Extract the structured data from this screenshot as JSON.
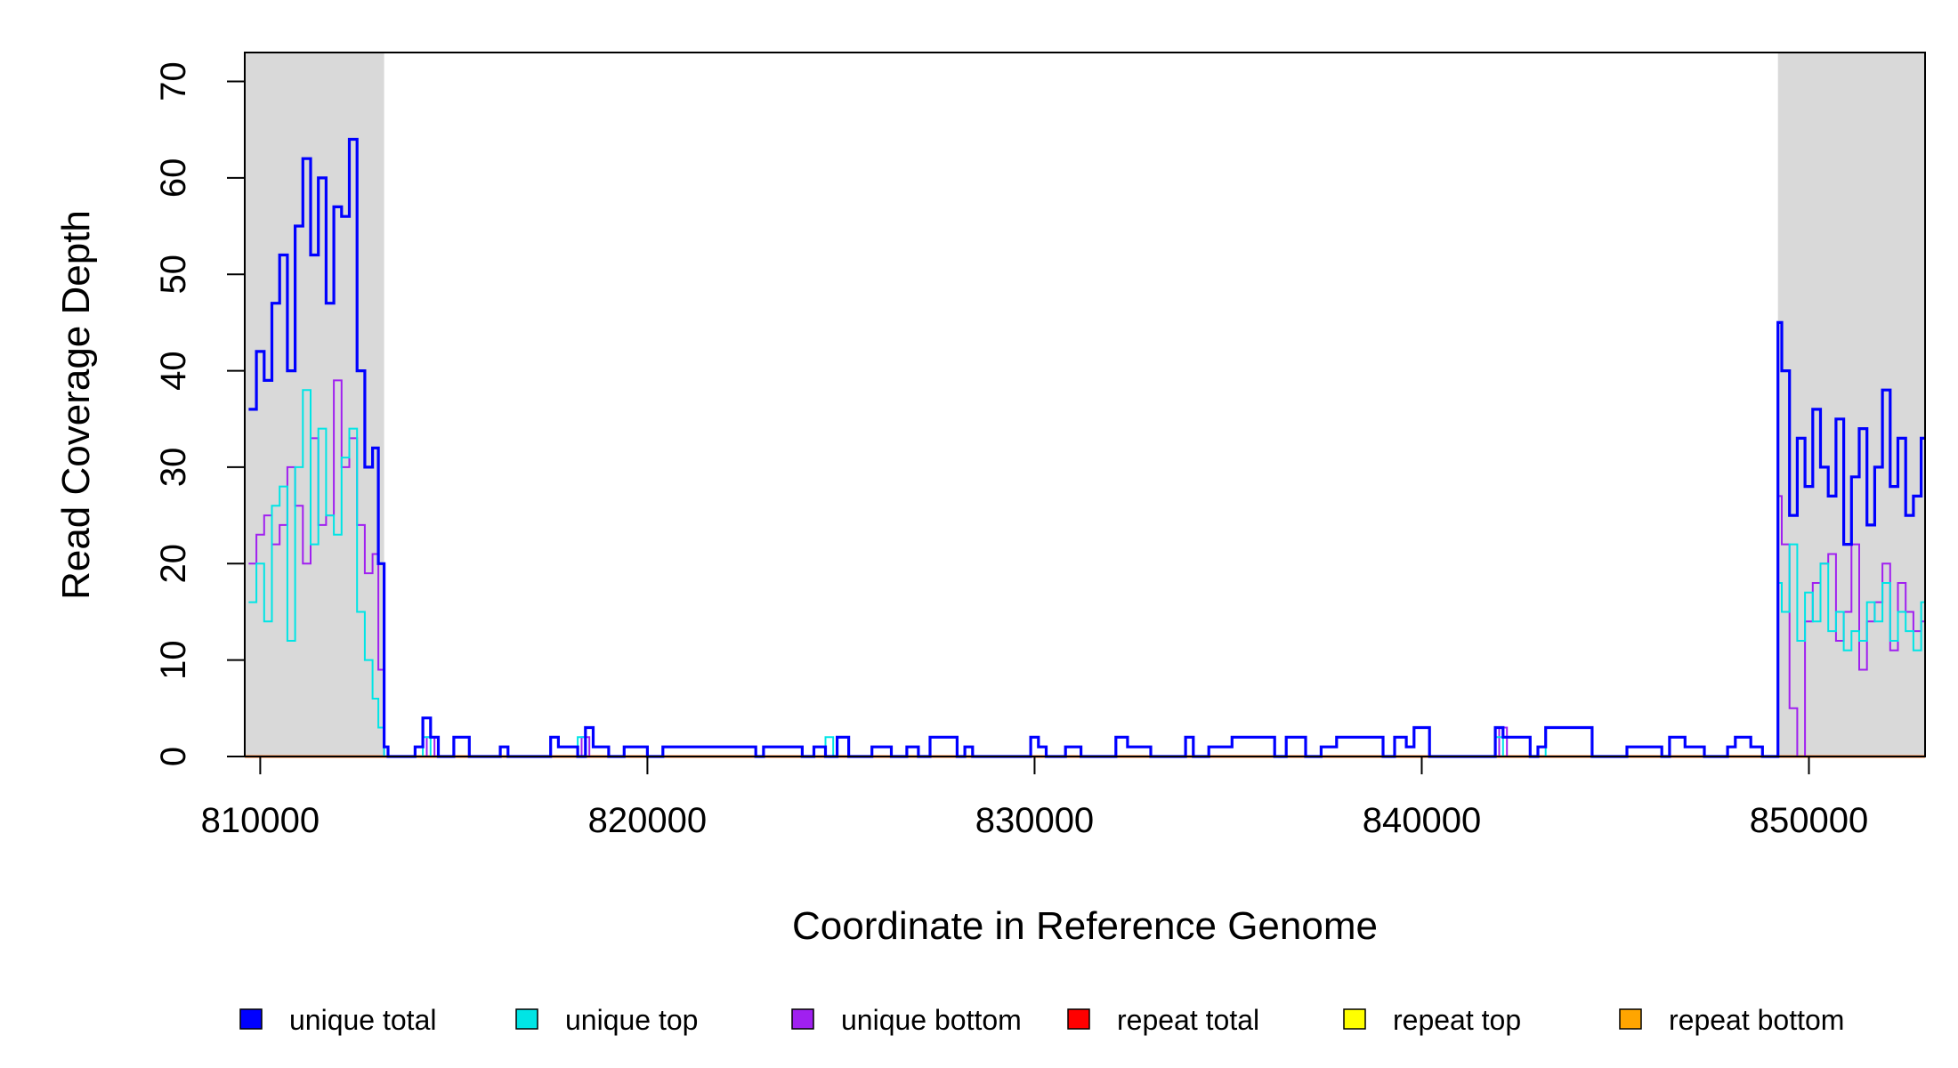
{
  "chart_data": {
    "type": "line",
    "style": "step",
    "xlabel": "Coordinate in Reference Genome",
    "ylabel": "Read Coverage Depth",
    "xlim": [
      809600,
      853000
    ],
    "ylim": [
      0,
      73
    ],
    "x_ticks": [
      810000,
      820000,
      830000,
      840000,
      850000
    ],
    "y_ticks": [
      0,
      10,
      20,
      30,
      40,
      50,
      60,
      70
    ],
    "shaded_regions": [
      [
        809600,
        813200
      ],
      [
        849200,
        853000
      ]
    ],
    "shade_color": "#d9d9d9",
    "legend": {
      "position": "bottom",
      "entries": [
        {
          "label": "unique total",
          "color": "#0000ff"
        },
        {
          "label": "unique top",
          "color": "#00e5e5"
        },
        {
          "label": "unique bottom",
          "color": "#a020f0"
        },
        {
          "label": "repeat total",
          "color": "#ff0000"
        },
        {
          "label": "repeat top",
          "color": "#ffff00"
        },
        {
          "label": "repeat bottom",
          "color": "#ffa500"
        }
      ]
    },
    "series": [
      {
        "name": "unique total",
        "color": "#0000ff",
        "x": [
          809700,
          809900,
          810100,
          810300,
          810500,
          810700,
          810900,
          811100,
          811300,
          811500,
          811700,
          811900,
          812100,
          812300,
          812500,
          812700,
          812900,
          813050,
          813200,
          813300,
          813500,
          814000,
          814200,
          814400,
          814600,
          815000,
          815400,
          816000,
          816200,
          816400,
          817300,
          817500,
          817700,
          818200,
          818400,
          818600,
          819000,
          819400,
          820000,
          820400,
          822800,
          823000,
          823500,
          824000,
          824300,
          824600,
          824900,
          825200,
          825800,
          826300,
          826700,
          827000,
          827300,
          828000,
          828200,
          828400,
          829900,
          830100,
          830300,
          830800,
          831200,
          831900,
          832100,
          832400,
          832700,
          833000,
          833700,
          833900,
          834100,
          834500,
          834800,
          835100,
          836200,
          836500,
          837000,
          837400,
          837800,
          839000,
          839300,
          839600,
          839800,
          840200,
          841700,
          841900,
          842100,
          842800,
          843000,
          843200,
          844400,
          845300,
          845800,
          846200,
          846400,
          846800,
          847300,
          847900,
          848100,
          848500,
          848800,
          849000,
          849200,
          849300,
          849500,
          849700,
          849900,
          850100,
          850300,
          850500,
          850700,
          850900,
          851100,
          851300,
          851500,
          851700,
          851900,
          852100,
          852300,
          852500,
          852700,
          852900,
          853000
        ],
        "y": [
          36,
          42,
          39,
          47,
          52,
          40,
          55,
          62,
          52,
          60,
          47,
          57,
          56,
          64,
          40,
          30,
          32,
          20,
          1,
          0,
          0,
          1,
          4,
          2,
          0,
          2,
          0,
          0,
          1,
          0,
          0,
          2,
          1,
          0,
          3,
          1,
          0,
          1,
          0,
          1,
          0,
          1,
          1,
          0,
          1,
          0,
          2,
          0,
          1,
          0,
          1,
          0,
          2,
          0,
          1,
          0,
          2,
          1,
          0,
          1,
          0,
          0,
          2,
          1,
          1,
          0,
          0,
          2,
          0,
          1,
          1,
          2,
          0,
          2,
          0,
          1,
          2,
          0,
          2,
          1,
          3,
          0,
          0,
          3,
          2,
          0,
          1,
          3,
          0,
          1,
          1,
          0,
          2,
          1,
          0,
          1,
          2,
          1,
          0,
          0,
          45,
          40,
          25,
          33,
          28,
          36,
          30,
          27,
          35,
          22,
          29,
          34,
          24,
          30,
          38,
          28,
          33,
          25,
          27,
          33,
          33
        ]
      },
      {
        "name": "unique top",
        "color": "#00e5e5",
        "x": [
          809700,
          809900,
          810100,
          810300,
          810500,
          810700,
          810900,
          811100,
          811300,
          811500,
          811700,
          811900,
          812100,
          812300,
          812500,
          812700,
          812900,
          813050,
          813200,
          813300,
          814200,
          814400,
          818200,
          818400,
          824600,
          824800,
          841900,
          842100,
          843000,
          843200,
          849200,
          849300,
          849500,
          849700,
          849900,
          850100,
          850300,
          850500,
          850700,
          850900,
          851100,
          851300,
          851500,
          851700,
          851900,
          852100,
          852300,
          852500,
          852700,
          852900,
          853000
        ],
        "y": [
          16,
          20,
          14,
          26,
          28,
          12,
          30,
          38,
          22,
          34,
          25,
          23,
          31,
          34,
          15,
          10,
          6,
          3,
          0,
          0,
          2,
          0,
          2,
          0,
          2,
          0,
          2,
          0,
          1,
          0,
          18,
          15,
          22,
          12,
          17,
          14,
          20,
          13,
          15,
          11,
          13,
          12,
          16,
          14,
          18,
          12,
          15,
          13,
          11,
          16,
          16
        ]
      },
      {
        "name": "unique bottom",
        "color": "#a020f0",
        "x": [
          809700,
          809900,
          810100,
          810300,
          810500,
          810700,
          810900,
          811100,
          811300,
          811500,
          811700,
          811900,
          812100,
          812300,
          812500,
          812700,
          812900,
          813050,
          813200,
          813300,
          814300,
          814500,
          818300,
          818500,
          842000,
          842200,
          849200,
          849300,
          849500,
          849700,
          849900,
          850100,
          850300,
          850500,
          850700,
          850900,
          851100,
          851300,
          851500,
          851700,
          851900,
          852100,
          852300,
          852500,
          852700,
          852900,
          853000
        ],
        "y": [
          20,
          23,
          25,
          22,
          24,
          30,
          26,
          20,
          33,
          24,
          25,
          39,
          30,
          33,
          24,
          19,
          21,
          9,
          0,
          0,
          2,
          0,
          2,
          0,
          3,
          0,
          27,
          22,
          5,
          0,
          14,
          18,
          20,
          21,
          12,
          15,
          22,
          9,
          14,
          16,
          20,
          11,
          18,
          15,
          13,
          14,
          14
        ]
      },
      {
        "name": "repeat total",
        "color": "#ff0000",
        "x": [
          809600,
          853000
        ],
        "y": [
          0,
          0
        ]
      },
      {
        "name": "repeat top",
        "color": "#ffff00",
        "x": [
          809600,
          853000
        ],
        "y": [
          0,
          0
        ]
      },
      {
        "name": "repeat bottom",
        "color": "#ffa500",
        "x": [
          809600,
          853000
        ],
        "y": [
          0,
          0
        ]
      }
    ]
  }
}
